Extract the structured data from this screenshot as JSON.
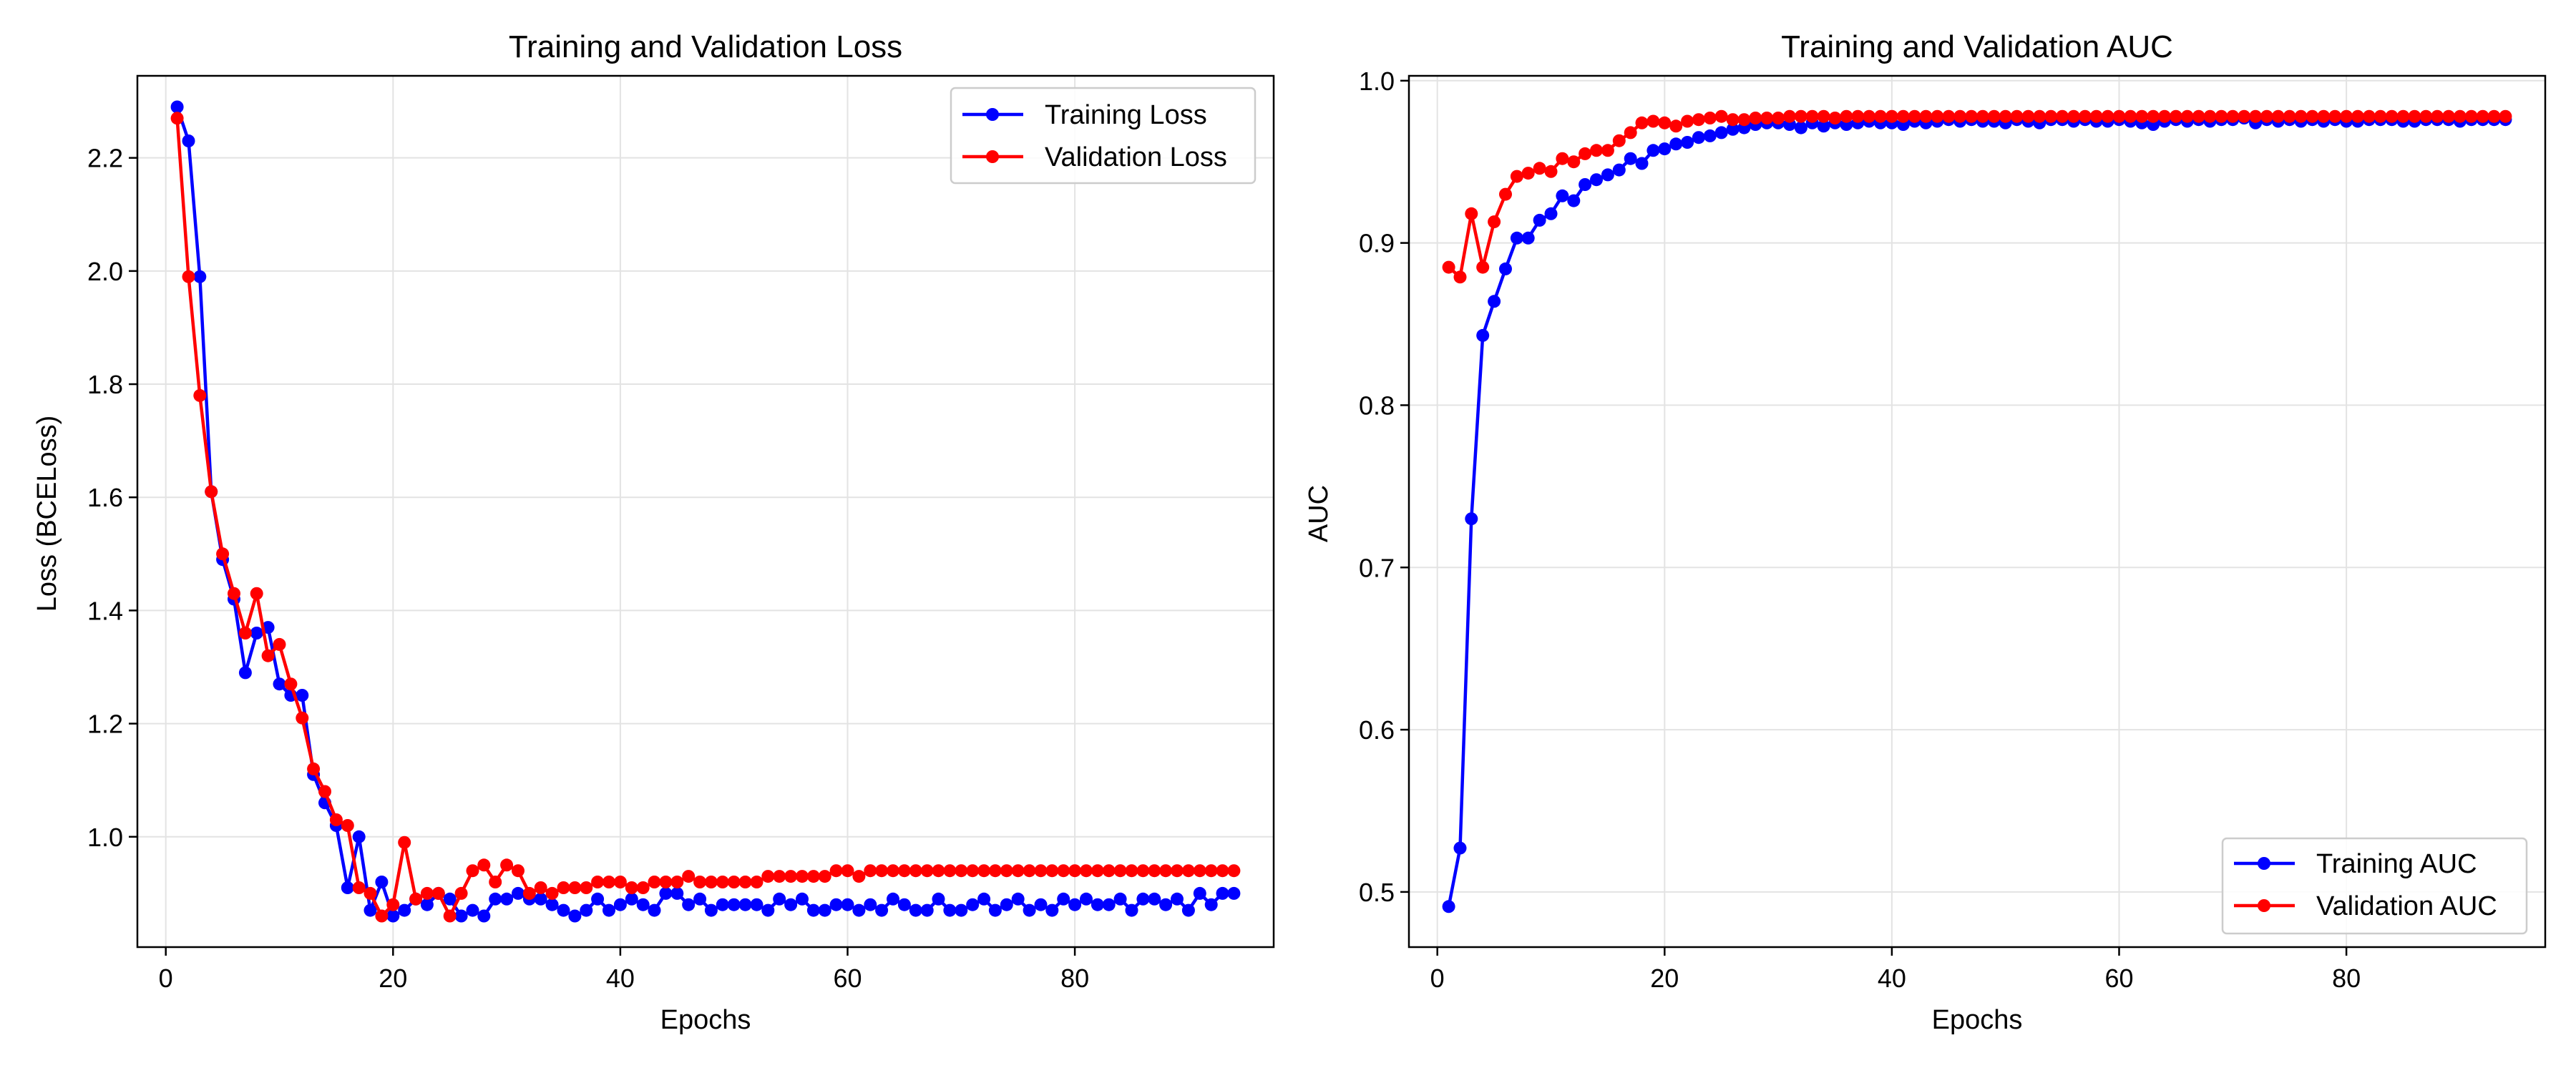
{
  "chart_data": [
    {
      "type": "line",
      "title": "Training and Validation Loss",
      "xlabel": "Epochs",
      "ylabel": "Loss (BCELoss)",
      "xlim": [
        -2.5,
        97.5
      ],
      "ylim": [
        0.805,
        2.345
      ],
      "xticks": [
        0,
        20,
        40,
        60,
        80
      ],
      "yticks": [
        1.0,
        1.2,
        1.4,
        1.6,
        1.8,
        2.0,
        2.2
      ],
      "ytick_labels": [
        "1.0",
        "1.2",
        "1.4",
        "1.6",
        "1.8",
        "2.0",
        "2.2"
      ],
      "grid": true,
      "legend_position": "upper right",
      "series": [
        {
          "name": "Training Loss",
          "color": "#0000ff",
          "x": [
            1,
            2,
            3,
            4,
            5,
            6,
            7,
            8,
            9,
            10,
            11,
            12,
            13,
            14,
            15,
            16,
            17,
            18,
            19,
            20,
            21,
            22,
            23,
            24,
            25,
            26,
            27,
            28,
            29,
            30,
            31,
            32,
            33,
            34,
            35,
            36,
            37,
            38,
            39,
            40,
            41,
            42,
            43,
            44,
            45,
            46,
            47,
            48,
            49,
            50,
            51,
            52,
            53,
            54,
            55,
            56,
            57,
            58,
            59,
            60,
            61,
            62,
            63,
            64,
            65,
            66,
            67,
            68,
            69,
            70,
            71,
            72,
            73,
            74,
            75,
            76,
            77,
            78,
            79,
            80,
            81,
            82,
            83,
            84,
            85,
            86,
            87,
            88,
            89,
            90,
            91,
            92,
            93,
            94
          ],
          "values": [
            2.29,
            2.23,
            1.99,
            1.61,
            1.49,
            1.42,
            1.29,
            1.36,
            1.37,
            1.27,
            1.25,
            1.25,
            1.11,
            1.06,
            1.02,
            0.91,
            1.0,
            0.87,
            0.92,
            0.86,
            0.87,
            0.89,
            0.88,
            0.9,
            0.89,
            0.86,
            0.87,
            0.86,
            0.89,
            0.89,
            0.9,
            0.89,
            0.89,
            0.88,
            0.87,
            0.86,
            0.87,
            0.89,
            0.87,
            0.88,
            0.89,
            0.88,
            0.87,
            0.9,
            0.9,
            0.88,
            0.89,
            0.87,
            0.88,
            0.88,
            0.88,
            0.88,
            0.87,
            0.89,
            0.88,
            0.89,
            0.87,
            0.87,
            0.88,
            0.88,
            0.87,
            0.88,
            0.87,
            0.89,
            0.88,
            0.87,
            0.87,
            0.89,
            0.87,
            0.87,
            0.88,
            0.89,
            0.87,
            0.88,
            0.89,
            0.87,
            0.88,
            0.87,
            0.89,
            0.88,
            0.89,
            0.88,
            0.88,
            0.89,
            0.87,
            0.89,
            0.89,
            0.88,
            0.89,
            0.87,
            0.9,
            0.88,
            0.9,
            0.9
          ]
        },
        {
          "name": "Validation Loss",
          "color": "#ff0000",
          "x": [
            1,
            2,
            3,
            4,
            5,
            6,
            7,
            8,
            9,
            10,
            11,
            12,
            13,
            14,
            15,
            16,
            17,
            18,
            19,
            20,
            21,
            22,
            23,
            24,
            25,
            26,
            27,
            28,
            29,
            30,
            31,
            32,
            33,
            34,
            35,
            36,
            37,
            38,
            39,
            40,
            41,
            42,
            43,
            44,
            45,
            46,
            47,
            48,
            49,
            50,
            51,
            52,
            53,
            54,
            55,
            56,
            57,
            58,
            59,
            60,
            61,
            62,
            63,
            64,
            65,
            66,
            67,
            68,
            69,
            70,
            71,
            72,
            73,
            74,
            75,
            76,
            77,
            78,
            79,
            80,
            81,
            82,
            83,
            84,
            85,
            86,
            87,
            88,
            89,
            90,
            91,
            92,
            93,
            94
          ],
          "values": [
            2.27,
            1.99,
            1.78,
            1.61,
            1.5,
            1.43,
            1.36,
            1.43,
            1.32,
            1.34,
            1.27,
            1.21,
            1.12,
            1.08,
            1.03,
            1.02,
            0.91,
            0.9,
            0.86,
            0.88,
            0.99,
            0.89,
            0.9,
            0.9,
            0.86,
            0.9,
            0.94,
            0.95,
            0.92,
            0.95,
            0.94,
            0.9,
            0.91,
            0.9,
            0.91,
            0.91,
            0.91,
            0.92,
            0.92,
            0.92,
            0.91,
            0.91,
            0.92,
            0.92,
            0.92,
            0.93,
            0.92,
            0.92,
            0.92,
            0.92,
            0.92,
            0.92,
            0.93,
            0.93,
            0.93,
            0.93,
            0.93,
            0.93,
            0.94,
            0.94,
            0.93,
            0.94,
            0.94,
            0.94,
            0.94,
            0.94,
            0.94,
            0.94,
            0.94,
            0.94,
            0.94,
            0.94,
            0.94,
            0.94,
            0.94,
            0.94,
            0.94,
            0.94,
            0.94,
            0.94,
            0.94,
            0.94,
            0.94,
            0.94,
            0.94,
            0.94,
            0.94,
            0.94,
            0.94,
            0.94,
            0.94,
            0.94,
            0.94,
            0.94
          ]
        }
      ]
    },
    {
      "type": "line",
      "title": "Training and Validation AUC",
      "xlabel": "Epochs",
      "ylabel": "AUC",
      "xlim": [
        -2.5,
        97.5
      ],
      "ylim": [
        0.466,
        1.003
      ],
      "xticks": [
        0,
        20,
        40,
        60,
        80
      ],
      "yticks": [
        0.5,
        0.6,
        0.7,
        0.8,
        0.9,
        1.0
      ],
      "ytick_labels": [
        "0.5",
        "0.6",
        "0.7",
        "0.8",
        "0.9",
        "1.0"
      ],
      "grid": true,
      "legend_position": "lower right",
      "series": [
        {
          "name": "Training AUC",
          "color": "#0000ff",
          "x": [
            1,
            2,
            3,
            4,
            5,
            6,
            7,
            8,
            9,
            10,
            11,
            12,
            13,
            14,
            15,
            16,
            17,
            18,
            19,
            20,
            21,
            22,
            23,
            24,
            25,
            26,
            27,
            28,
            29,
            30,
            31,
            32,
            33,
            34,
            35,
            36,
            37,
            38,
            39,
            40,
            41,
            42,
            43,
            44,
            45,
            46,
            47,
            48,
            49,
            50,
            51,
            52,
            53,
            54,
            55,
            56,
            57,
            58,
            59,
            60,
            61,
            62,
            63,
            64,
            65,
            66,
            67,
            68,
            69,
            70,
            71,
            72,
            73,
            74,
            75,
            76,
            77,
            78,
            79,
            80,
            81,
            82,
            83,
            84,
            85,
            86,
            87,
            88,
            89,
            90,
            91,
            92,
            93,
            94
          ],
          "values": [
            0.491,
            0.527,
            0.73,
            0.843,
            0.864,
            0.884,
            0.903,
            0.903,
            0.914,
            0.918,
            0.929,
            0.926,
            0.936,
            0.939,
            0.942,
            0.945,
            0.952,
            0.949,
            0.957,
            0.958,
            0.961,
            0.962,
            0.965,
            0.966,
            0.968,
            0.97,
            0.971,
            0.973,
            0.974,
            0.974,
            0.973,
            0.971,
            0.974,
            0.972,
            0.974,
            0.973,
            0.974,
            0.975,
            0.974,
            0.974,
            0.973,
            0.975,
            0.974,
            0.975,
            0.976,
            0.975,
            0.976,
            0.975,
            0.975,
            0.974,
            0.976,
            0.975,
            0.974,
            0.976,
            0.976,
            0.975,
            0.976,
            0.975,
            0.975,
            0.976,
            0.975,
            0.974,
            0.973,
            0.975,
            0.976,
            0.975,
            0.976,
            0.975,
            0.976,
            0.976,
            0.977,
            0.974,
            0.976,
            0.975,
            0.976,
            0.975,
            0.976,
            0.975,
            0.976,
            0.975,
            0.975,
            0.976,
            0.976,
            0.976,
            0.975,
            0.975,
            0.976,
            0.976,
            0.976,
            0.975,
            0.976,
            0.976,
            0.976,
            0.976
          ]
        },
        {
          "name": "Validation AUC",
          "color": "#ff0000",
          "x": [
            1,
            2,
            3,
            4,
            5,
            6,
            7,
            8,
            9,
            10,
            11,
            12,
            13,
            14,
            15,
            16,
            17,
            18,
            19,
            20,
            21,
            22,
            23,
            24,
            25,
            26,
            27,
            28,
            29,
            30,
            31,
            32,
            33,
            34,
            35,
            36,
            37,
            38,
            39,
            40,
            41,
            42,
            43,
            44,
            45,
            46,
            47,
            48,
            49,
            50,
            51,
            52,
            53,
            54,
            55,
            56,
            57,
            58,
            59,
            60,
            61,
            62,
            63,
            64,
            65,
            66,
            67,
            68,
            69,
            70,
            71,
            72,
            73,
            74,
            75,
            76,
            77,
            78,
            79,
            80,
            81,
            82,
            83,
            84,
            85,
            86,
            87,
            88,
            89,
            90,
            91,
            92,
            93,
            94
          ],
          "values": [
            0.885,
            0.879,
            0.918,
            0.885,
            0.913,
            0.93,
            0.941,
            0.943,
            0.946,
            0.944,
            0.952,
            0.95,
            0.955,
            0.957,
            0.957,
            0.963,
            0.968,
            0.974,
            0.975,
            0.974,
            0.972,
            0.975,
            0.976,
            0.977,
            0.978,
            0.976,
            0.976,
            0.977,
            0.977,
            0.977,
            0.978,
            0.978,
            0.978,
            0.978,
            0.977,
            0.978,
            0.978,
            0.978,
            0.978,
            0.978,
            0.978,
            0.978,
            0.978,
            0.978,
            0.978,
            0.978,
            0.978,
            0.978,
            0.978,
            0.978,
            0.978,
            0.978,
            0.978,
            0.978,
            0.978,
            0.978,
            0.978,
            0.978,
            0.978,
            0.978,
            0.978,
            0.978,
            0.978,
            0.978,
            0.978,
            0.978,
            0.978,
            0.978,
            0.978,
            0.978,
            0.978,
            0.978,
            0.978,
            0.978,
            0.978,
            0.978,
            0.978,
            0.978,
            0.978,
            0.978,
            0.978,
            0.978,
            0.978,
            0.978,
            0.978,
            0.978,
            0.978,
            0.978,
            0.978,
            0.978,
            0.978,
            0.978,
            0.978,
            0.978
          ]
        }
      ]
    }
  ]
}
